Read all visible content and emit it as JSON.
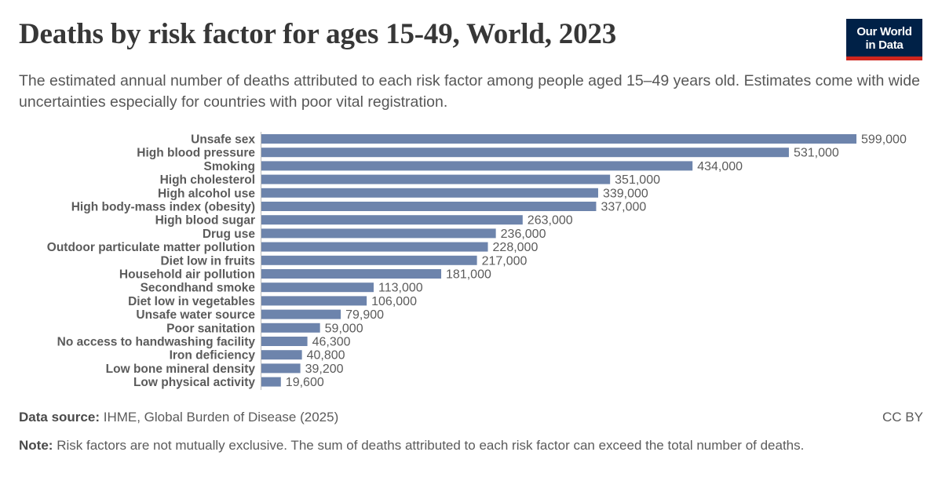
{
  "header": {
    "title": "Deaths by risk factor for ages 15-49, World, 2023",
    "subtitle": "The estimated annual number of deaths attributed to each risk factor among people aged 15–49 years old. Estimates come with wide uncertainties especially for countries with poor vital registration.",
    "logo_line1": "Our World",
    "logo_line2": "in Data"
  },
  "colors": {
    "bar": "#6d84ac",
    "logo_bg": "#002147",
    "logo_accent": "#ce261e"
  },
  "chart_data": {
    "type": "bar",
    "orientation": "horizontal",
    "categories": [
      "Unsafe sex",
      "High blood pressure",
      "Smoking",
      "High cholesterol",
      "High alcohol use",
      "High body-mass index (obesity)",
      "High blood sugar",
      "Drug use",
      "Outdoor particulate matter pollution",
      "Diet low in fruits",
      "Household air pollution",
      "Secondhand smoke",
      "Diet low in vegetables",
      "Unsafe water source",
      "Poor sanitation",
      "No access to handwashing facility",
      "Iron deficiency",
      "Low bone mineral density",
      "Low physical activity"
    ],
    "values": [
      599000,
      531000,
      434000,
      351000,
      339000,
      337000,
      263000,
      236000,
      228000,
      217000,
      181000,
      113000,
      106000,
      79900,
      59000,
      46300,
      40800,
      39200,
      19600
    ],
    "value_labels": [
      "599,000",
      "531,000",
      "434,000",
      "351,000",
      "339,000",
      "337,000",
      "263,000",
      "236,000",
      "228,000",
      "217,000",
      "181,000",
      "113,000",
      "106,000",
      "79,900",
      "59,000",
      "46,300",
      "40,800",
      "39,200",
      "19,600"
    ],
    "xlim": [
      0,
      599000
    ],
    "grid": false,
    "legend": "none"
  },
  "footer": {
    "source_label": "Data source:",
    "source_text": "IHME, Global Burden of Disease (2025)",
    "license": "CC BY",
    "note_label": "Note:",
    "note_text": "Risk factors are not mutually exclusive. The sum of deaths attributed to each risk factor can exceed the total number of deaths."
  }
}
